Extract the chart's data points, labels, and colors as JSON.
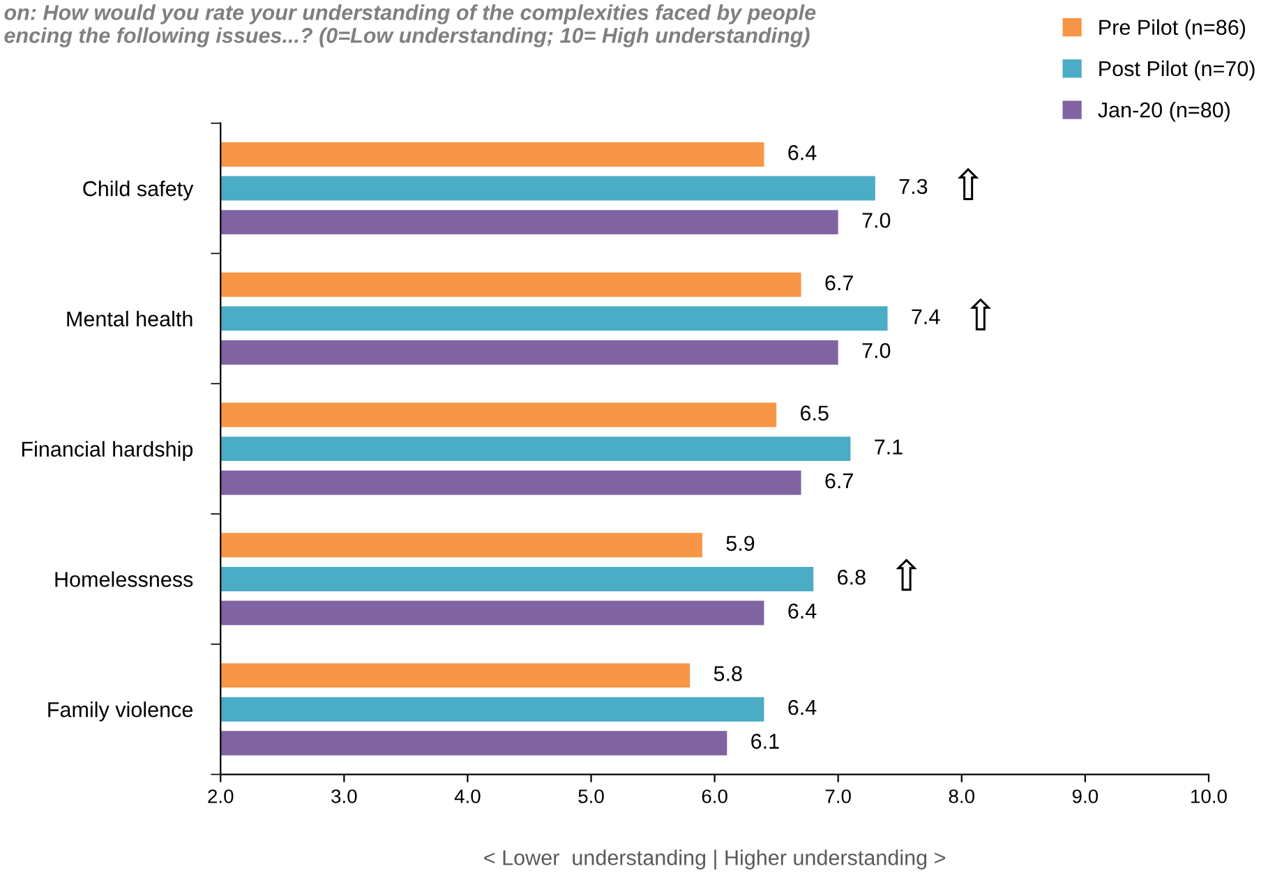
{
  "chart_data": {
    "type": "bar",
    "orientation": "horizontal",
    "title": "on: How would you rate your understanding of the complexities faced by people\nencing the following issues...? (0=Low understanding; 10= High understanding)",
    "xlabel": "< Lower  understanding | Higher understanding >",
    "categories": [
      "Child safety",
      "Mental health",
      "Financial hardship",
      "Homelessness",
      "Family violence"
    ],
    "series": [
      {
        "name": "Pre Pilot (n=86)",
        "color": "#f79646",
        "values": [
          6.4,
          6.7,
          6.5,
          5.9,
          5.8
        ],
        "value_labels": [
          "6.4",
          "6.7",
          "6.5",
          "5.9",
          "5.8"
        ]
      },
      {
        "name": "Post Pilot (n=70)",
        "color": "#4bacc6",
        "values": [
          7.3,
          7.4,
          7.1,
          6.8,
          6.4
        ],
        "value_labels": [
          "7.3",
          "7.4",
          "7.1",
          "6.8",
          "6.4"
        ]
      },
      {
        "name": "Jan-20 (n=80)",
        "color": "#8064a2",
        "values": [
          7.0,
          7.0,
          6.7,
          6.4,
          6.1
        ],
        "value_labels": [
          "7.0",
          "7.0",
          "6.7",
          "6.4",
          "6.1"
        ]
      }
    ],
    "xlim": [
      2,
      10
    ],
    "xticks": [
      {
        "value": 2,
        "label": "2.0"
      },
      {
        "value": 3,
        "label": "3.0"
      },
      {
        "value": 4,
        "label": "4.0"
      },
      {
        "value": 5,
        "label": "5.0"
      },
      {
        "value": 6,
        "label": "6.0"
      },
      {
        "value": 7,
        "label": "7.0"
      },
      {
        "value": 8,
        "label": "8.0"
      },
      {
        "value": 9,
        "label": "9.0"
      },
      {
        "value": 10,
        "label": "10.0"
      }
    ],
    "annotations": [
      {
        "text": "⇧",
        "x": 7.3,
        "y": "Child safety"
      },
      {
        "text": "⇧",
        "x": 7.4,
        "y": "Mental health"
      },
      {
        "text": "⇧",
        "x": 6.8,
        "y": "Homelessness"
      }
    ],
    "grid": false,
    "legend": "top right"
  }
}
